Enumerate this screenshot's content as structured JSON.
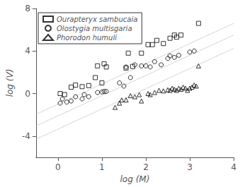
{
  "chart_data": {
    "type": "scatter",
    "xlabel": "log (M)",
    "ylabel": "log (V)",
    "xlim": [
      -0.5,
      4.0
    ],
    "ylim": [
      -6,
      8
    ],
    "xticks": [
      0,
      1,
      2,
      3,
      4
    ],
    "yticks": [
      -4,
      0,
      4,
      8
    ],
    "grid": false,
    "legend": "upper left",
    "series": [
      {
        "name": "Ourapteryx sambucaia",
        "type": "scatter",
        "marker": "square",
        "color": "#000000",
        "x": [
          0.05,
          0.15,
          0.3,
          0.4,
          0.55,
          0.7,
          0.85,
          0.9,
          1.0,
          1.05,
          1.1,
          1.55,
          1.6,
          1.7,
          1.9,
          2.05,
          2.15,
          2.25,
          2.4,
          2.55,
          2.65,
          2.7,
          2.8,
          3.2
        ],
        "values": [
          0.0,
          -0.1,
          0.6,
          0.8,
          0.65,
          0.75,
          1.5,
          2.6,
          1.0,
          2.8,
          2.5,
          2.4,
          3.8,
          2.55,
          3.8,
          4.6,
          4.6,
          5.0,
          4.7,
          5.2,
          5.5,
          5.3,
          5.5,
          6.6
        ]
      },
      {
        "name": "Olostygia multisgaria",
        "type": "scatter",
        "marker": "circle",
        "color": "#000000",
        "x": [
          0.05,
          0.1,
          0.2,
          0.3,
          0.4,
          0.55,
          0.6,
          0.7,
          0.9,
          1.0,
          1.05,
          1.1,
          1.4,
          1.5,
          1.55,
          1.65,
          1.75,
          1.9,
          2.0,
          2.1,
          2.2,
          2.35,
          2.5,
          2.55,
          2.65,
          2.75,
          3.0,
          3.1
        ],
        "values": [
          -0.9,
          -0.5,
          -0.8,
          -0.7,
          -0.3,
          -0.5,
          -0.1,
          -0.3,
          0.1,
          0.15,
          0.2,
          0.2,
          1.0,
          0.7,
          2.5,
          1.5,
          2.7,
          2.6,
          2.6,
          2.5,
          3.0,
          2.7,
          3.3,
          3.55,
          3.4,
          3.6,
          3.9,
          4.0
        ]
      },
      {
        "name": "Phorodon humuli",
        "type": "scatter",
        "marker": "triangle",
        "color": "#000000",
        "x": [
          1.3,
          1.4,
          1.45,
          1.55,
          1.65,
          1.75,
          1.85,
          1.9,
          2.05,
          2.1,
          2.2,
          2.3,
          2.4,
          2.5,
          2.55,
          2.6,
          2.65,
          2.7,
          2.75,
          2.8,
          2.85,
          2.9,
          2.95,
          3.0,
          3.05,
          3.1,
          3.15,
          3.2
        ],
        "values": [
          -1.3,
          -0.9,
          -0.6,
          -0.6,
          -0.2,
          -0.3,
          -0.1,
          -0.7,
          0.0,
          -0.1,
          0.1,
          0.3,
          0.25,
          0.35,
          0.3,
          0.5,
          0.4,
          0.3,
          0.5,
          0.4,
          0.6,
          0.5,
          0.3,
          0.5,
          0.6,
          0.8,
          0.7,
          2.6
        ]
      },
      {
        "type": "line",
        "line_style": "dotted",
        "color": "#aaaaaa",
        "x": [
          -0.5,
          4.0
        ],
        "values": [
          -1.95,
          6.6
        ]
      },
      {
        "type": "line",
        "line_style": "dotted",
        "color": "#aaaaaa",
        "x": [
          -0.5,
          4.0
        ],
        "values": [
          -3.05,
          5.5
        ]
      },
      {
        "type": "line",
        "line_style": "dotted",
        "color": "#aaaaaa",
        "x": [
          -0.5,
          4.0
        ],
        "values": [
          -4.3,
          4.25
        ]
      }
    ]
  }
}
